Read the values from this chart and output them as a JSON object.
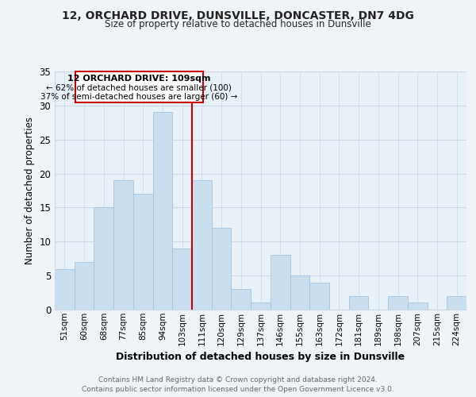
{
  "title_line1": "12, ORCHARD DRIVE, DUNSVILLE, DONCASTER, DN7 4DG",
  "title_line2": "Size of property relative to detached houses in Dunsville",
  "xlabel": "Distribution of detached houses by size in Dunsville",
  "ylabel": "Number of detached properties",
  "bin_labels": [
    "51sqm",
    "60sqm",
    "68sqm",
    "77sqm",
    "85sqm",
    "94sqm",
    "103sqm",
    "111sqm",
    "120sqm",
    "129sqm",
    "137sqm",
    "146sqm",
    "155sqm",
    "163sqm",
    "172sqm",
    "181sqm",
    "189sqm",
    "198sqm",
    "207sqm",
    "215sqm",
    "224sqm"
  ],
  "bar_heights": [
    6,
    7,
    15,
    19,
    17,
    29,
    9,
    19,
    12,
    3,
    1,
    8,
    5,
    4,
    0,
    2,
    0,
    2,
    1,
    0,
    2
  ],
  "bar_color": "#c9dff0",
  "bar_edge_color": "#a0c4e0",
  "highlight_color": "#cc0000",
  "ylim": [
    0,
    35
  ],
  "yticks": [
    0,
    5,
    10,
    15,
    20,
    25,
    30,
    35
  ],
  "annotation_title": "12 ORCHARD DRIVE: 109sqm",
  "annotation_line2": "← 62% of detached houses are smaller (100)",
  "annotation_line3": "37% of semi-detached houses are larger (60) →",
  "footer_line1": "Contains HM Land Registry data © Crown copyright and database right 2024.",
  "footer_line2": "Contains public sector information licensed under the Open Government Licence v3.0.",
  "bg_color": "#f0f4f8",
  "plot_bg_color": "#e8f0f8",
  "grid_color": "#c8d8e8"
}
